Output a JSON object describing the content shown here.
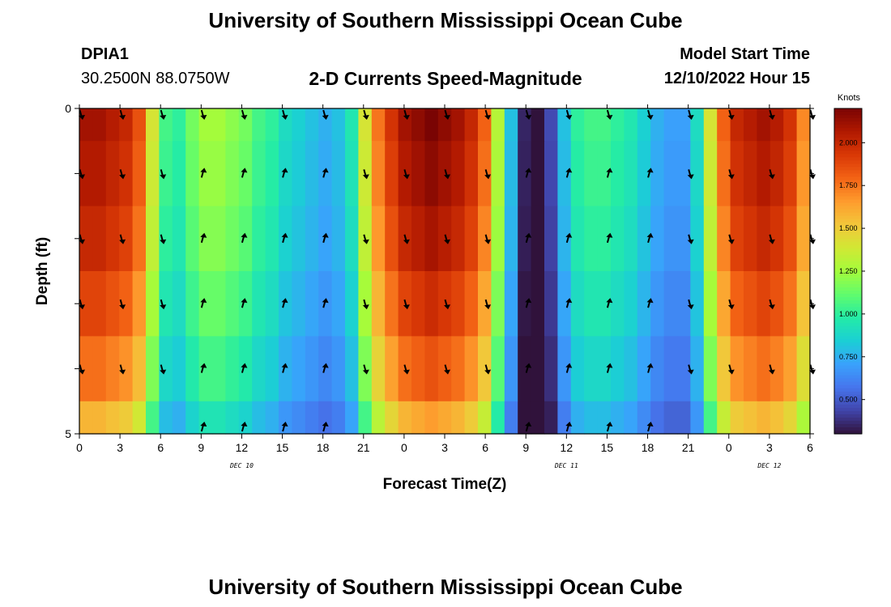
{
  "header": {
    "title": "University of Southern Mississippi Ocean Cube",
    "station": "DPIA1",
    "coordinates": "30.2500N  88.0750W",
    "subtitle": "2-D Currents Speed-Magnitude",
    "model_start_label": "Model Start Time",
    "model_start_value": "12/10/2022 Hour 15"
  },
  "footer": {
    "title": "University of Southern Mississippi Ocean Cube"
  },
  "colors": {
    "ramp": [
      "#30123b",
      "#4145ab",
      "#4675ed",
      "#39a2fc",
      "#1bcfd4",
      "#24eca6",
      "#61fc6c",
      "#a4fc3b",
      "#d1e834",
      "#f3c63a",
      "#fe9b2d",
      "#f36315",
      "#d93806",
      "#b11901",
      "#7a0403"
    ],
    "arrow": "#000000"
  },
  "chart_data": {
    "type": "heatmap",
    "title": "2-D Currents Speed-Magnitude",
    "xlabel": "Forecast Time(Z)",
    "ylabel": "Depth (ft)",
    "x_hours": [
      0,
      1,
      2,
      3,
      4,
      5,
      6,
      7,
      8,
      9,
      10,
      11,
      12,
      13,
      14,
      15,
      16,
      17,
      18,
      19,
      20,
      21,
      22,
      23,
      24,
      25,
      26,
      27,
      28,
      29,
      30,
      31,
      32,
      33,
      34,
      35,
      36,
      37,
      38,
      39,
      40,
      41,
      42,
      43,
      44,
      45,
      46,
      47,
      48,
      49,
      50,
      51,
      52,
      53,
      54
    ],
    "x_tick_positions": [
      0,
      3,
      6,
      9,
      12,
      15,
      18,
      21,
      24,
      27,
      30,
      33,
      36,
      39,
      42,
      45,
      48,
      51,
      54
    ],
    "x_tick_labels": [
      "0",
      "3",
      "6",
      "9",
      "12",
      "15",
      "18",
      "21",
      "0",
      "3",
      "6",
      "9",
      "12",
      "15",
      "18",
      "21",
      "0",
      "3",
      "6"
    ],
    "day_labels": [
      {
        "hour": 12,
        "text": "DEC 10"
      },
      {
        "hour": 36,
        "text": "DEC 11"
      },
      {
        "hour": 51,
        "text": "DEC 12"
      }
    ],
    "depth_levels": [
      0,
      1,
      2,
      3,
      4,
      5
    ],
    "y_tick_labels": [
      "0",
      "",
      "",
      "",
      "",
      "5"
    ],
    "ylim": [
      0,
      5
    ],
    "xlim": [
      0,
      54
    ],
    "speed_range_knots": [
      0.3,
      2.2
    ],
    "speed_profile": {
      "hours": [
        0,
        1,
        2,
        3,
        4,
        5,
        6,
        7,
        8,
        9,
        10,
        11,
        12,
        13,
        14,
        15,
        16,
        17,
        18,
        19,
        20,
        21,
        22,
        23,
        24,
        25,
        26,
        27,
        28,
        29,
        30,
        31,
        32,
        33,
        34,
        35,
        36,
        37,
        38,
        39,
        40,
        41,
        42,
        43,
        44,
        45,
        46,
        47,
        48,
        49,
        50,
        51,
        52,
        53,
        54
      ],
      "surface_knots": [
        2.1,
        2.1,
        2.05,
        2.0,
        1.85,
        1.4,
        1.05,
        1.0,
        1.15,
        1.25,
        1.25,
        1.2,
        1.15,
        1.05,
        1.0,
        0.9,
        0.85,
        0.8,
        0.75,
        0.8,
        0.95,
        1.4,
        1.75,
        1.95,
        2.1,
        2.15,
        2.2,
        2.15,
        2.1,
        2.0,
        1.8,
        1.3,
        0.8,
        0.35,
        0.3,
        0.45,
        0.8,
        1.0,
        1.05,
        1.05,
        1.0,
        0.95,
        0.85,
        0.75,
        0.7,
        0.7,
        0.9,
        1.4,
        1.8,
        2.0,
        2.05,
        2.1,
        2.05,
        1.95,
        1.7
      ],
      "depth_factor": [
        1.0,
        0.98,
        0.95,
        0.9,
        0.84,
        0.75
      ]
    },
    "arrows": {
      "hours": [
        0,
        3,
        6,
        9,
        12,
        15,
        18,
        21,
        24,
        27,
        30,
        33,
        36,
        39,
        42,
        45,
        48,
        51,
        54
      ],
      "surface_direction": [
        "down",
        "down",
        "down",
        "down",
        "down",
        "down",
        "down",
        "down",
        "down",
        "down",
        "down",
        "down",
        "down",
        "down",
        "down",
        "down",
        "down",
        "down",
        "down"
      ],
      "subsurface_direction": [
        "down",
        "down",
        "down",
        "up",
        "up",
        "up",
        "up",
        "down",
        "down",
        "down",
        "down",
        "up",
        "up",
        "up",
        "up",
        "down",
        "down",
        "down",
        "down"
      ]
    },
    "colorbar": {
      "label": "Knots",
      "ticks": [
        0.5,
        0.75,
        1.0,
        1.25,
        1.5,
        1.75,
        2.0
      ],
      "tick_labels": [
        "0.500",
        "0.750",
        "1.000",
        "1.250",
        "1.500",
        "1.750",
        "2.000"
      ]
    }
  }
}
